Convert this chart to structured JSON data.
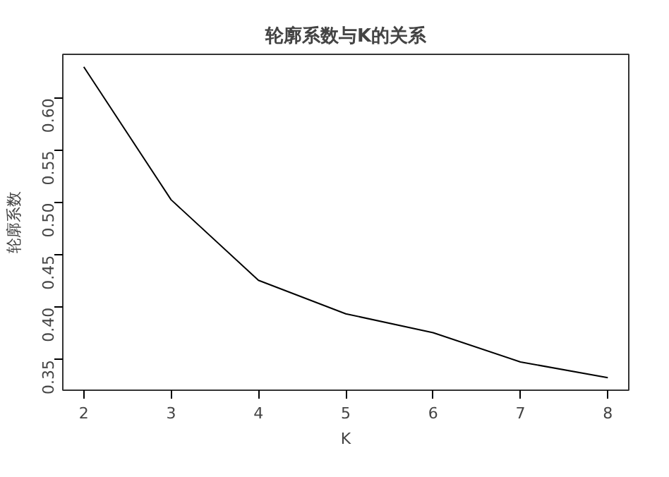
{
  "chart_data": {
    "type": "line",
    "title": "轮廓系数与K的关系",
    "xlabel": "K",
    "ylabel": "轮廓系数",
    "x": [
      2,
      3,
      4,
      5,
      6,
      7,
      8
    ],
    "series": [
      {
        "color": "#000000",
        "values": [
          0.63,
          0.503,
          0.426,
          0.394,
          0.376,
          0.348,
          0.333
        ]
      }
    ],
    "xlim": [
      1.76,
      8.24
    ],
    "ylim": [
      0.321,
      0.642
    ],
    "xticks": [
      2,
      3,
      4,
      5,
      6,
      7,
      8
    ],
    "yticks": [
      {
        "value": 0.35,
        "label": "0.35"
      },
      {
        "value": 0.4,
        "label": "0.40"
      },
      {
        "value": 0.45,
        "label": "0.45"
      },
      {
        "value": 0.5,
        "label": "0.50"
      },
      {
        "value": 0.55,
        "label": "0.55"
      },
      {
        "value": 0.6,
        "label": "0.60"
      }
    ],
    "grid": false,
    "marker": "none",
    "line_style": "solid"
  }
}
